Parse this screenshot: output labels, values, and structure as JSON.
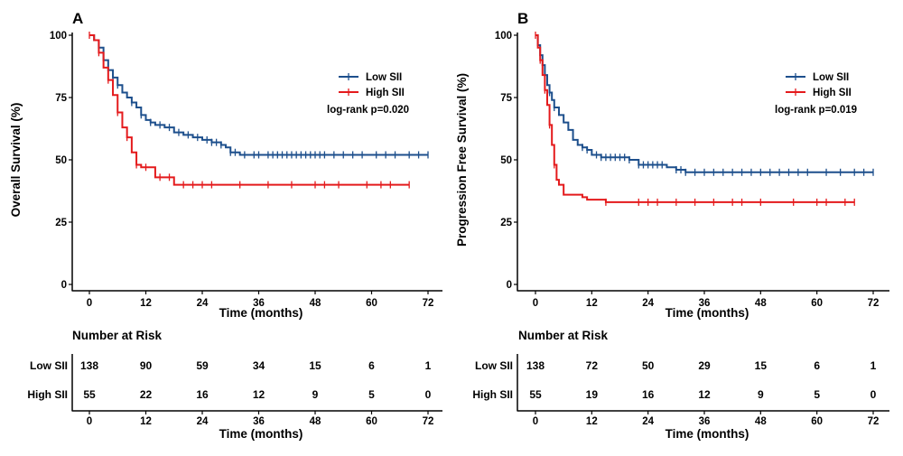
{
  "chart_data": [
    {
      "type": "line",
      "subtype": "kaplan-meier",
      "panel_label": "A",
      "xlabel": "Time (months)",
      "ylabel": "Overall Survival (%)",
      "xlim": [
        0,
        72
      ],
      "ylim": [
        0,
        100
      ],
      "xticks": [
        "0",
        "12",
        "24",
        "36",
        "48",
        "60",
        "72"
      ],
      "yticks": [
        "0",
        "25",
        "50",
        "75",
        "100"
      ],
      "annotation": "log-rank p=0.020",
      "legend_position": "top-right",
      "series": [
        {
          "name": "Low SII",
          "color": "#1d4f8c",
          "steps": [
            [
              0,
              100
            ],
            [
              1,
              98
            ],
            [
              2,
              95
            ],
            [
              3,
              90
            ],
            [
              4,
              86
            ],
            [
              5,
              83
            ],
            [
              6,
              80
            ],
            [
              7,
              77
            ],
            [
              8,
              75
            ],
            [
              9,
              73
            ],
            [
              10,
              71
            ],
            [
              11,
              68
            ],
            [
              12,
              66
            ],
            [
              13,
              65
            ],
            [
              14,
              64
            ],
            [
              16,
              63
            ],
            [
              18,
              61
            ],
            [
              20,
              60
            ],
            [
              22,
              59
            ],
            [
              24,
              58
            ],
            [
              26,
              57
            ],
            [
              28,
              56
            ],
            [
              29,
              55
            ],
            [
              30,
              53
            ],
            [
              32,
              52
            ],
            [
              34,
              52
            ],
            [
              72,
              52
            ]
          ],
          "censor_x": [
            2,
            4,
            5,
            6,
            9,
            11,
            13,
            15,
            17,
            19,
            21,
            23,
            25,
            26,
            27,
            28,
            30,
            31,
            33,
            35,
            36,
            38,
            39,
            40,
            41,
            42,
            43,
            44,
            45,
            46,
            47,
            48,
            49,
            50,
            52,
            54,
            56,
            58,
            61,
            63,
            65,
            68,
            70,
            72
          ]
        },
        {
          "name": "High SII",
          "color": "#e41a1c",
          "steps": [
            [
              0,
              100
            ],
            [
              1,
              98
            ],
            [
              2,
              93
            ],
            [
              3,
              87
            ],
            [
              4,
              82
            ],
            [
              5,
              76
            ],
            [
              6,
              69
            ],
            [
              7,
              63
            ],
            [
              8,
              59
            ],
            [
              9,
              53
            ],
            [
              10,
              48
            ],
            [
              11,
              47
            ],
            [
              13,
              47
            ],
            [
              14,
              43
            ],
            [
              17,
              43
            ],
            [
              18,
              40
            ],
            [
              68,
              40
            ]
          ],
          "censor_x": [
            0,
            2,
            4,
            6,
            8,
            10,
            12,
            15,
            17,
            20,
            22,
            24,
            26,
            32,
            38,
            43,
            48,
            50,
            53,
            59,
            62,
            64,
            68
          ]
        }
      ],
      "risk_table": {
        "title": "Number at Risk",
        "xlabel": "Time (months)",
        "times": [
          0,
          12,
          24,
          36,
          48,
          60,
          72
        ],
        "rows": [
          {
            "label": "Low SII",
            "values": [
              "138",
              "90",
              "59",
              "34",
              "15",
              "6",
              "1"
            ]
          },
          {
            "label": "High SII",
            "values": [
              "55",
              "22",
              "16",
              "12",
              "9",
              "5",
              "0"
            ]
          }
        ]
      }
    },
    {
      "type": "line",
      "subtype": "kaplan-meier",
      "panel_label": "B",
      "xlabel": "Time (months)",
      "ylabel": "Progression Free Survival (%)",
      "xlim": [
        0,
        72
      ],
      "ylim": [
        0,
        100
      ],
      "xticks": [
        "0",
        "12",
        "24",
        "36",
        "48",
        "60",
        "72"
      ],
      "yticks": [
        "0",
        "25",
        "50",
        "75",
        "100"
      ],
      "annotation": "log-rank p=0.019",
      "legend_position": "top-right",
      "series": [
        {
          "name": "Low SII",
          "color": "#1d4f8c",
          "steps": [
            [
              0,
              100
            ],
            [
              0.5,
              96
            ],
            [
              1,
              92
            ],
            [
              1.5,
              88
            ],
            [
              2,
              84
            ],
            [
              2.5,
              80
            ],
            [
              3,
              77
            ],
            [
              3.5,
              74
            ],
            [
              4,
              71
            ],
            [
              5,
              68
            ],
            [
              6,
              65
            ],
            [
              7,
              62
            ],
            [
              8,
              58
            ],
            [
              9,
              56
            ],
            [
              10,
              55
            ],
            [
              11,
              54
            ],
            [
              12,
              52
            ],
            [
              14,
              51
            ],
            [
              18,
              51
            ],
            [
              20,
              50
            ],
            [
              22,
              48
            ],
            [
              24,
              48
            ],
            [
              28,
              47
            ],
            [
              30,
              46
            ],
            [
              32,
              45
            ],
            [
              72,
              45
            ]
          ],
          "censor_x": [
            1,
            2,
            3,
            4,
            10,
            11,
            13,
            14,
            15,
            16,
            17,
            18,
            19,
            20,
            22,
            23,
            24,
            25,
            26,
            27,
            30,
            31,
            32,
            34,
            36,
            38,
            40,
            42,
            44,
            46,
            48,
            50,
            52,
            54,
            56,
            58,
            62,
            65,
            68,
            70,
            72
          ]
        },
        {
          "name": "High SII",
          "color": "#e41a1c",
          "steps": [
            [
              0,
              100
            ],
            [
              0.5,
              95
            ],
            [
              1,
              90
            ],
            [
              1.5,
              84
            ],
            [
              2,
              78
            ],
            [
              2.5,
              72
            ],
            [
              3,
              64
            ],
            [
              3.5,
              56
            ],
            [
              4,
              48
            ],
            [
              4.5,
              42
            ],
            [
              5,
              40
            ],
            [
              6,
              36
            ],
            [
              10,
              35
            ],
            [
              11,
              34
            ],
            [
              15,
              33
            ],
            [
              68,
              33
            ]
          ],
          "censor_x": [
            0,
            1,
            2,
            3,
            4,
            15,
            22,
            24,
            26,
            30,
            34,
            38,
            42,
            44,
            48,
            55,
            60,
            62,
            66,
            68
          ]
        }
      ],
      "risk_table": {
        "title": "Number at Risk",
        "xlabel": "Time (months)",
        "times": [
          0,
          12,
          24,
          36,
          48,
          60,
          72
        ],
        "rows": [
          {
            "label": "Low SII",
            "values": [
              "138",
              "72",
              "50",
              "29",
              "15",
              "6",
              "1"
            ]
          },
          {
            "label": "High SII",
            "values": [
              "55",
              "19",
              "16",
              "12",
              "9",
              "5",
              "0"
            ]
          }
        ]
      }
    }
  ]
}
